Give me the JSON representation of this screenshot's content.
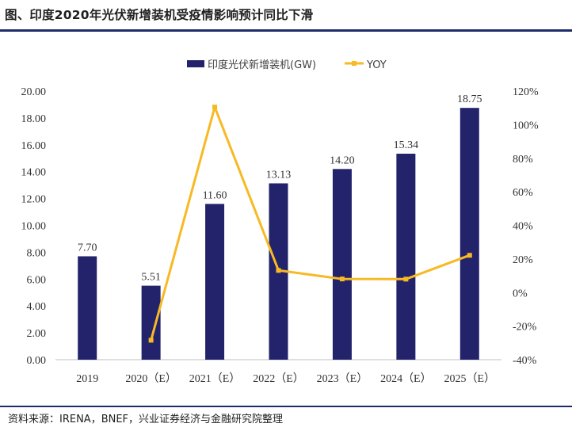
{
  "title": "图、印度2020年光伏新增装机受疫情影响预计同比下滑",
  "source": "资料来源：IRENA，BNEF，兴业证券经济与金融研究院整理",
  "colors": {
    "bar": "#23236b",
    "line": "#f7b924",
    "rule": "#1f2a6b",
    "axis": "#bfbfbf"
  },
  "chart_data": {
    "type": "bar",
    "categories": [
      "2019",
      "2020（E）",
      "2021（E）",
      "2022（E）",
      "2023（E）",
      "2024（E）",
      "2025（E）"
    ],
    "series": [
      {
        "name": "印度光伏新增装机(GW)",
        "type": "bar",
        "axis": "left",
        "values": [
          7.7,
          5.51,
          11.6,
          13.13,
          14.2,
          15.34,
          18.75
        ],
        "labels": [
          "7.70",
          "5.51",
          "11.60",
          "13.13",
          "14.20",
          "15.34",
          "18.75"
        ]
      },
      {
        "name": "YOY",
        "type": "line",
        "axis": "right",
        "values": [
          null,
          -28.4,
          110.5,
          13.2,
          8.1,
          8.0,
          22.2
        ]
      }
    ],
    "y_left": {
      "ylim": [
        0,
        20
      ],
      "ticks": [
        "0.00",
        "2.00",
        "4.00",
        "6.00",
        "8.00",
        "10.00",
        "12.00",
        "14.00",
        "16.00",
        "18.00",
        "20.00"
      ]
    },
    "y_right": {
      "ylim": [
        -40,
        120
      ],
      "ticks": [
        "-40%",
        "-20%",
        "0%",
        "20%",
        "40%",
        "60%",
        "80%",
        "100%",
        "120%"
      ]
    },
    "legend": "top-center"
  }
}
